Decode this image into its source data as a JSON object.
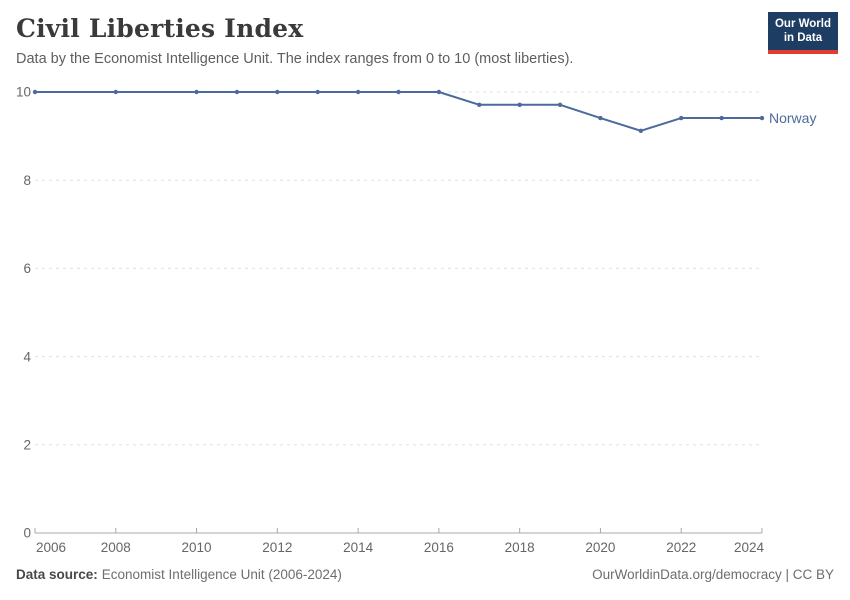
{
  "header": {
    "title": "Civil Liberties Index",
    "subtitle": "Data by the Economist Intelligence Unit. The index ranges from 0 to 10 (most liberties).",
    "logo": {
      "line1": "Our World",
      "line2": "in Data"
    }
  },
  "colors": {
    "series_line": "#4C6A9C",
    "gridline": "#e0e0e0",
    "axis": "#a8a8a8",
    "tick_text": "#666666",
    "title_text": "#3a3a3a",
    "logo_background": "#1d3d63",
    "logo_accent": "#dc3e31"
  },
  "chart_data": {
    "type": "line",
    "title": "Civil Liberties Index",
    "subtitle": "Data by the Economist Intelligence Unit. The index ranges from 0 to 10 (most liberties).",
    "xlabel": "",
    "ylabel": "",
    "xlim": [
      2006,
      2024
    ],
    "ylim": [
      0,
      10
    ],
    "x_ticks": [
      2006,
      2008,
      2010,
      2012,
      2014,
      2016,
      2018,
      2020,
      2022,
      2024
    ],
    "y_ticks": [
      0,
      2,
      4,
      6,
      8,
      10
    ],
    "grid": "horizontal-dashed",
    "legend_position": "end-of-line-label",
    "series": [
      {
        "name": "Norway",
        "color": "#4C6A9C",
        "points": [
          [
            2006,
            10
          ],
          [
            2008,
            10
          ],
          [
            2010,
            10
          ],
          [
            2011,
            10
          ],
          [
            2012,
            10
          ],
          [
            2013,
            10
          ],
          [
            2014,
            10
          ],
          [
            2015,
            10
          ],
          [
            2016,
            10
          ],
          [
            2017,
            9.71
          ],
          [
            2018,
            9.71
          ],
          [
            2019,
            9.71
          ],
          [
            2020,
            9.41
          ],
          [
            2021,
            9.12
          ],
          [
            2022,
            9.41
          ],
          [
            2023,
            9.41
          ],
          [
            2024,
            9.41
          ]
        ]
      }
    ]
  },
  "footer": {
    "source_label": "Data source:",
    "source_text": "Economist Intelligence Unit (2006-2024)",
    "right_text": "OurWorldinData.org/democracy | CC BY"
  }
}
